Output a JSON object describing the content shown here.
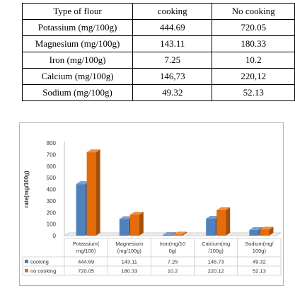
{
  "table": {
    "headers": [
      "Type of flour",
      "cooking",
      "No cooking"
    ],
    "rows": [
      [
        "Potassium (mg/100g)",
        "444.69",
        "720.05"
      ],
      [
        "Magnesium (mg/100g)",
        "143.11",
        "180.33"
      ],
      [
        "Iron (mg/100g)",
        "7.25",
        "10.2"
      ],
      [
        "Calcium (mg/100g)",
        "146,73",
        "220,12"
      ],
      [
        "Sodium (mg/100g)",
        "49.32",
        "52.13"
      ]
    ]
  },
  "chart_data": {
    "type": "bar",
    "ylabel": "rate(mg/100g)",
    "xlabel": "",
    "ylim": [
      0,
      800
    ],
    "yticks": [
      0,
      100,
      200,
      300,
      400,
      500,
      600,
      700,
      800
    ],
    "categories": [
      "Potassium(\nmg/100)",
      "Magnesium\n(mg/100g)",
      "Iron(mg/10\n0g)",
      "Calcium(mg\n/100g)",
      "Sodium(mg/\n100g)"
    ],
    "series": [
      {
        "name": "cooking",
        "color": "#4f81bd",
        "labels": [
          "444.69",
          "143.11",
          "7.25",
          "146.73",
          "49.32"
        ],
        "values": [
          444.69,
          143.11,
          7.25,
          146.73,
          49.32
        ]
      },
      {
        "name": "no cooking",
        "color": "#e46c0a",
        "labels": [
          "720.05",
          "180.33",
          "10.2",
          "220.12",
          "52.13"
        ],
        "values": [
          720.05,
          180.33,
          10.2,
          220.12,
          52.13
        ]
      }
    ],
    "grid": false,
    "legend": "data-table-bottom"
  }
}
